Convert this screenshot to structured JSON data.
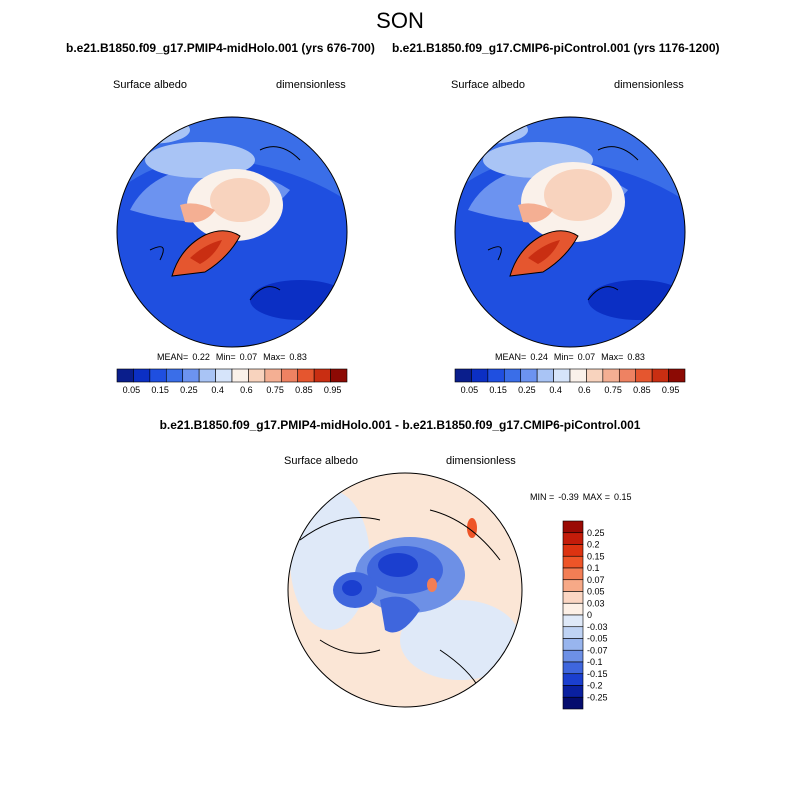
{
  "title": "SON",
  "panels": [
    {
      "case": "b.e21.B1850.f09_g17.PMIP4-midHolo.001 (yrs 676-700)",
      "variable": "Surface albedo",
      "units": "dimensionless",
      "stats": {
        "mean": "0.22",
        "min": "0.07",
        "max": "0.83"
      }
    },
    {
      "case": "b.e21.B1850.f09_g17.CMIP6-piControl.001 (yrs 1176-1200)",
      "variable": "Surface albedo",
      "units": "dimensionless",
      "stats": {
        "mean": "0.24",
        "min": "0.07",
        "max": "0.83"
      }
    }
  ],
  "diff_panel": {
    "case": "b.e21.B1850.f09_g17.PMIP4-midHolo.001 - b.e21.B1850.f09_g17.CMIP6-piControl.001",
    "variable": "Surface albedo",
    "units": "dimensionless",
    "stats": {
      "min": "-0.39",
      "max": "0.15"
    }
  },
  "colorbar_abs": {
    "labels": [
      "0.05",
      "0.15",
      "0.25",
      "0.4",
      "0.6",
      "0.75",
      "0.85",
      "0.95"
    ],
    "colors": [
      "#0a1e8c",
      "#0b2fc4",
      "#1f4fe0",
      "#3a6ee8",
      "#6c93f0",
      "#a9c4f5",
      "#d6e4fa",
      "#faf1ea",
      "#f8d3be",
      "#f4af93",
      "#ee8262",
      "#e5562f",
      "#c92e12",
      "#8c0a04"
    ]
  },
  "colorbar_diff": {
    "labels": [
      "0.25",
      "0.2",
      "0.15",
      "0.1",
      "0.07",
      "0.05",
      "0.03",
      "0",
      "-0.03",
      "-0.05",
      "-0.07",
      "-0.1",
      "-0.15",
      "-0.2",
      "-0.25"
    ],
    "colors": [
      "#9a0a04",
      "#c41c0a",
      "#dd3311",
      "#ee5528",
      "#f37e55",
      "#f7a987",
      "#fbd6c3",
      "#fdf0e6",
      "#dfe9f8",
      "#bfd3f4",
      "#98b5ee",
      "#6d90e6",
      "#3f66dd",
      "#1b3fcf",
      "#0a20a0",
      "#050d6e"
    ]
  }
}
